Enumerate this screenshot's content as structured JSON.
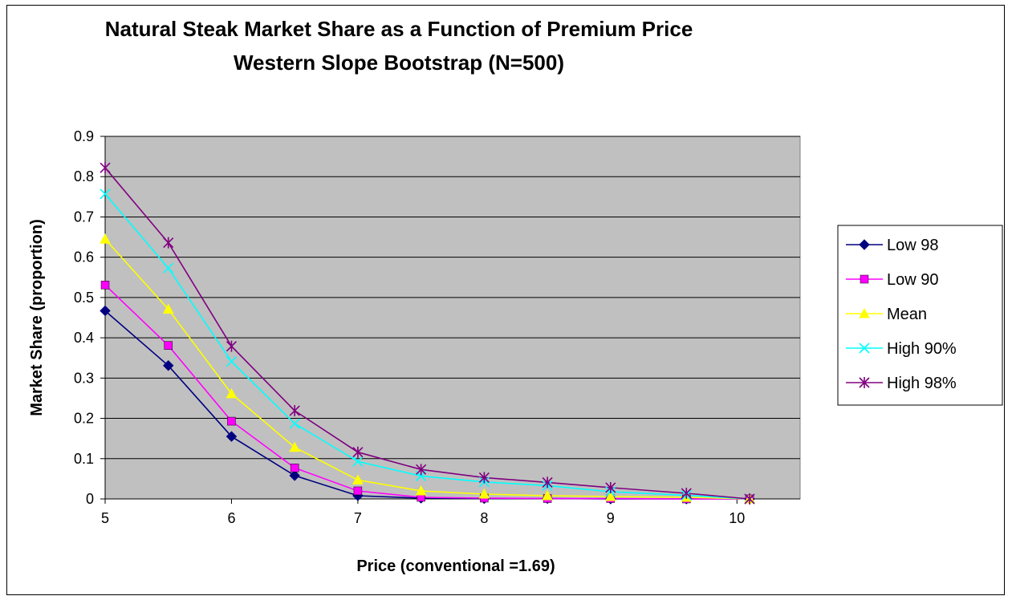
{
  "chart_data": {
    "type": "line",
    "title_lines": [
      "Natural Steak Market Share as a Function of Premium Price",
      "Western Slope Bootstrap (N=500)"
    ],
    "xlabel": "Price (conventional =1.69)",
    "ylabel": "Market Share (proportion)",
    "xlim": [
      5,
      10.5
    ],
    "ylim": [
      0,
      0.9
    ],
    "x_ticks": [
      5,
      6,
      7,
      8,
      9,
      10
    ],
    "x_tick_labels": [
      "5",
      "6",
      "7",
      "8",
      "9",
      "10"
    ],
    "y_ticks": [
      0,
      0.1,
      0.2,
      0.3,
      0.4,
      0.5,
      0.6,
      0.7,
      0.8,
      0.9
    ],
    "y_tick_labels": [
      "0",
      "0.1",
      "0.2",
      "0.3",
      "0.4",
      "0.5",
      "0.6",
      "0.7",
      "0.8",
      "0.9"
    ],
    "x": [
      5,
      5.5,
      6,
      6.5,
      7,
      7.5,
      8,
      8.5,
      9,
      9.6,
      10.1
    ],
    "grid": "horizontal",
    "plot_background": "#c0c0c0",
    "legend_position": "right",
    "series": [
      {
        "name": "Low 98",
        "color": "#000080",
        "marker": "diamond",
        "values": [
          0.467,
          0.331,
          0.155,
          0.058,
          0.008,
          0.002,
          0.001,
          0.001,
          0.0,
          0.0,
          0.0
        ]
      },
      {
        "name": "Low 90",
        "color": "#ff00ff",
        "marker": "square",
        "values": [
          0.531,
          0.381,
          0.193,
          0.077,
          0.02,
          0.004,
          0.002,
          0.001,
          0.001,
          0.0,
          0.0
        ]
      },
      {
        "name": "Mean",
        "color": "#ffff00",
        "marker": "triangle",
        "values": [
          0.645,
          0.471,
          0.261,
          0.128,
          0.047,
          0.02,
          0.012,
          0.008,
          0.006,
          0.004,
          0.0
        ]
      },
      {
        "name": "High 90%",
        "color": "#00ffff",
        "marker": "x",
        "values": [
          0.757,
          0.573,
          0.341,
          0.187,
          0.093,
          0.057,
          0.042,
          0.033,
          0.018,
          0.009,
          0.0
        ]
      },
      {
        "name": "High 98%",
        "color": "#800080",
        "marker": "asterisk",
        "values": [
          0.822,
          0.636,
          0.379,
          0.219,
          0.116,
          0.073,
          0.053,
          0.041,
          0.028,
          0.014,
          0.0
        ]
      }
    ]
  }
}
